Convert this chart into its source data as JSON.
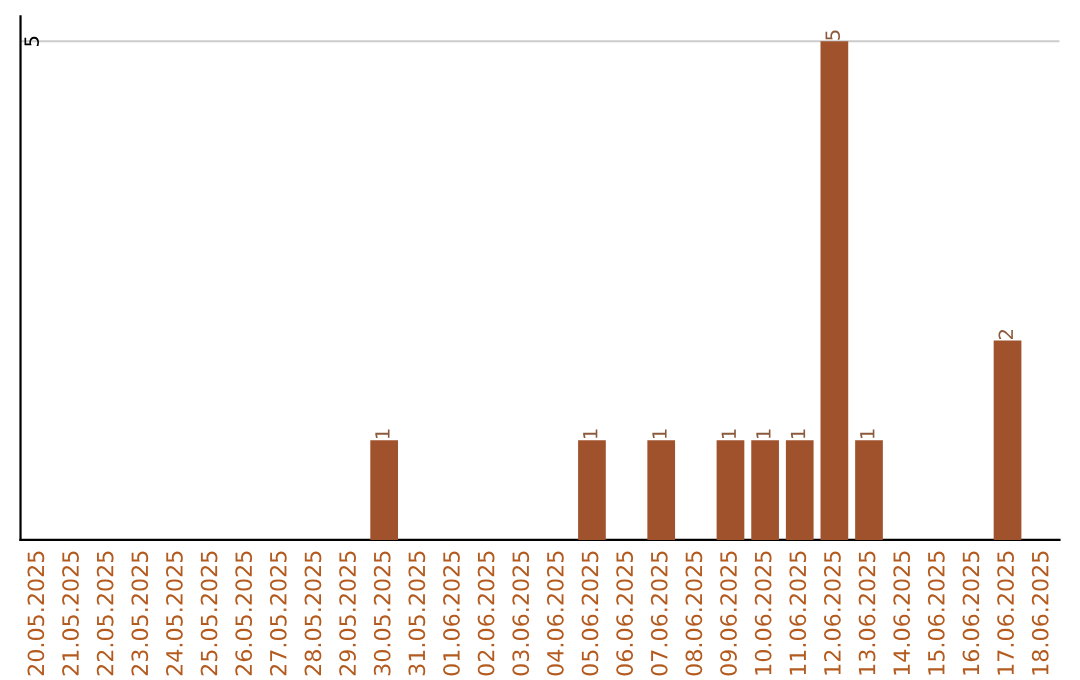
{
  "chart_data": {
    "type": "bar",
    "categories": [
      "20.05.2025",
      "21.05.2025",
      "22.05.2025",
      "23.05.2025",
      "24.05.2025",
      "25.05.2025",
      "26.05.2025",
      "27.05.2025",
      "28.05.2025",
      "29.05.2025",
      "30.05.2025",
      "31.05.2025",
      "01.06.2025",
      "02.06.2025",
      "03.06.2025",
      "04.06.2025",
      "05.06.2025",
      "06.06.2025",
      "07.06.2025",
      "08.06.2025",
      "09.06.2025",
      "10.06.2025",
      "11.06.2025",
      "12.06.2025",
      "13.06.2025",
      "14.06.2025",
      "15.06.2025",
      "16.06.2025",
      "17.06.2025",
      "18.06.2025"
    ],
    "values": [
      0,
      0,
      0,
      0,
      0,
      0,
      0,
      0,
      0,
      0,
      1,
      0,
      0,
      0,
      0,
      0,
      1,
      0,
      1,
      0,
      1,
      1,
      1,
      5,
      1,
      0,
      0,
      0,
      2,
      0
    ],
    "value_labels": [
      null,
      null,
      null,
      null,
      null,
      null,
      null,
      null,
      null,
      null,
      "1",
      null,
      null,
      null,
      null,
      null,
      "1",
      null,
      "1",
      null,
      "1",
      "1",
      "1",
      "5",
      "1",
      null,
      null,
      null,
      "2",
      null
    ],
    "color": "#a0522d",
    "ylim": [
      0,
      5.25
    ],
    "yticks": [
      5
    ],
    "grid": "y"
  }
}
